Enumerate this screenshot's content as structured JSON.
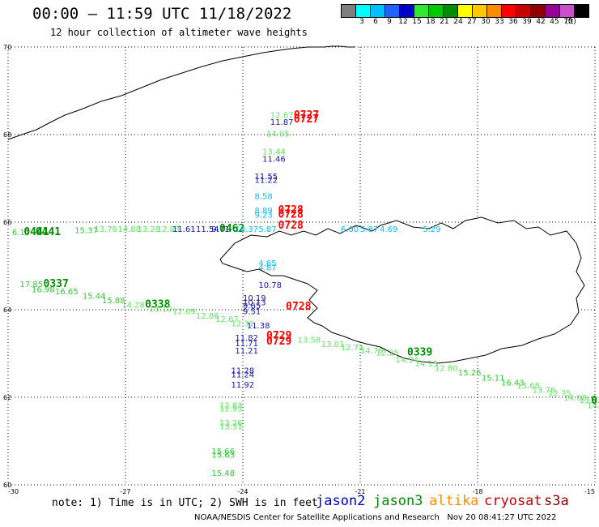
{
  "header": {
    "title": "00:00 – 11:59 UTC 11/18/2022",
    "subtitle": "12 hour collection of altimeter wave heights"
  },
  "legend": {
    "unit": "(ft)",
    "swatches": [
      {
        "label": "",
        "color": "#7f7f7f"
      },
      {
        "label": "3",
        "color": "#00ffff"
      },
      {
        "label": "6",
        "color": "#00bfff"
      },
      {
        "label": "9",
        "color": "#1e62ff"
      },
      {
        "label": "12",
        "color": "#0000c8"
      },
      {
        "label": "15",
        "color": "#32e632"
      },
      {
        "label": "18",
        "color": "#00c800"
      },
      {
        "label": "21",
        "color": "#008c00"
      },
      {
        "label": "24",
        "color": "#ffff00"
      },
      {
        "label": "27",
        "color": "#ffc800"
      },
      {
        "label": "30",
        "color": "#ff8c00"
      },
      {
        "label": "33",
        "color": "#ff0000"
      },
      {
        "label": "36",
        "color": "#c80000"
      },
      {
        "label": "39",
        "color": "#8c0000"
      },
      {
        "label": "42",
        "color": "#960096"
      },
      {
        "label": "45",
        "color": "#c850c8"
      },
      {
        "label": "70",
        "color": "#000000"
      }
    ]
  },
  "axes": {
    "lon_labels": [
      "-30",
      "-27",
      "-24",
      "-21",
      "-18",
      "-15"
    ],
    "lat_labels": [
      "70",
      "68",
      "66",
      "64",
      "62",
      "60"
    ]
  },
  "observations": [
    {
      "text": "12.67",
      "color": "#5ee65e",
      "lon": -23.3,
      "lat": 68.38
    },
    {
      "text": "11.87",
      "color": "#1414b4",
      "lon": -23.3,
      "lat": 68.22
    },
    {
      "text": "0727",
      "color": "#ff0000",
      "lon": -22.7,
      "lat": 68.37
    },
    {
      "text": "0727",
      "color": "#ff0000",
      "lon": -22.7,
      "lat": 68.28
    },
    {
      "text": "14.05",
      "color": "#5ee65e",
      "lon": -23.4,
      "lat": 67.95
    },
    {
      "text": "13.44",
      "color": "#5ee65e",
      "lon": -23.5,
      "lat": 67.55
    },
    {
      "text": "11.46",
      "color": "#1414b4",
      "lon": -23.5,
      "lat": 67.38
    },
    {
      "text": "11.55",
      "color": "#1414b4",
      "lon": -23.7,
      "lat": 66.98
    },
    {
      "text": "11.22",
      "color": "#1414b4",
      "lon": -23.7,
      "lat": 66.9
    },
    {
      "text": "8.58",
      "color": "#00bfff",
      "lon": -23.7,
      "lat": 66.53
    },
    {
      "text": "8.89",
      "color": "#00bfff",
      "lon": -23.7,
      "lat": 66.2
    },
    {
      "text": "9.23",
      "color": "#00bfff",
      "lon": -23.7,
      "lat": 66.1
    },
    {
      "text": "0728",
      "color": "#ff0000",
      "lon": -23.1,
      "lat": 66.2
    },
    {
      "text": "0728",
      "color": "#ff0000",
      "lon": -23.1,
      "lat": 66.1
    },
    {
      "text": "0728",
      "color": "#ff0000",
      "lon": -23.1,
      "lat": 65.85
    },
    {
      "text": "6.00",
      "color": "#00bfff",
      "lon": -21.5,
      "lat": 65.78
    },
    {
      "text": "5.87",
      "color": "#00bfff",
      "lon": -21.0,
      "lat": 65.78
    },
    {
      "text": "4.69",
      "color": "#00bfff",
      "lon": -20.5,
      "lat": 65.78
    },
    {
      "text": "5.29",
      "color": "#00bfff",
      "lon": -19.4,
      "lat": 65.78
    },
    {
      "text": "6.17",
      "color": "#32c832",
      "lon": -29.9,
      "lat": 65.7
    },
    {
      "text": "0441",
      "color": "#008c00",
      "lon": -29.6,
      "lat": 65.7
    },
    {
      "text": "0441",
      "color": "#008c00",
      "lon": -29.3,
      "lat": 65.7
    },
    {
      "text": "15.37",
      "color": "#32c832",
      "lon": -28.3,
      "lat": 65.75
    },
    {
      "text": "13.78",
      "color": "#5ee65e",
      "lon": -27.8,
      "lat": 65.78
    },
    {
      "text": "14.88",
      "color": "#5ee65e",
      "lon": -27.2,
      "lat": 65.78
    },
    {
      "text": "13.28",
      "color": "#5ee65e",
      "lon": -26.7,
      "lat": 65.78
    },
    {
      "text": "12.83",
      "color": "#5ee65e",
      "lon": -26.2,
      "lat": 65.78
    },
    {
      "text": "11.61",
      "color": "#1414b4",
      "lon": -25.8,
      "lat": 65.78
    },
    {
      "text": "11.54",
      "color": "#1414b4",
      "lon": -25.2,
      "lat": 65.78
    },
    {
      "text": "9.71",
      "color": "#1414b4",
      "lon": -24.8,
      "lat": 65.78
    },
    {
      "text": "0462",
      "color": "#008c00",
      "lon": -24.6,
      "lat": 65.78
    },
    {
      "text": "10.37",
      "color": "#00bfff",
      "lon": -24.2,
      "lat": 65.78
    },
    {
      "text": "5.87",
      "color": "#00bfff",
      "lon": -23.6,
      "lat": 65.78
    },
    {
      "text": "4.65",
      "color": "#00bfff",
      "lon": -23.6,
      "lat": 65.0
    },
    {
      "text": "4.87",
      "color": "#00bfff",
      "lon": -23.6,
      "lat": 64.9
    },
    {
      "text": "10.78",
      "color": "#1414b4",
      "lon": -23.6,
      "lat": 64.5
    },
    {
      "text": "10.19",
      "color": "#1414b4",
      "lon": -24.0,
      "lat": 64.2
    },
    {
      "text": "10.13",
      "color": "#1414b4",
      "lon": -24.0,
      "lat": 64.1
    },
    {
      "text": "9.65",
      "color": "#1414b4",
      "lon": -24.0,
      "lat": 64.03
    },
    {
      "text": "9.51",
      "color": "#1414b4",
      "lon": -24.0,
      "lat": 63.9
    },
    {
      "text": "0728",
      "color": "#ff0000",
      "lon": -22.9,
      "lat": 64.0
    },
    {
      "text": "17.85",
      "color": "#32c832",
      "lon": -29.7,
      "lat": 64.52
    },
    {
      "text": "0337",
      "color": "#008c00",
      "lon": -29.1,
      "lat": 64.52
    },
    {
      "text": "16.98",
      "color": "#32c832",
      "lon": -29.4,
      "lat": 64.4
    },
    {
      "text": "16.65",
      "color": "#32c832",
      "lon": -28.8,
      "lat": 64.35
    },
    {
      "text": "15.44",
      "color": "#32c832",
      "lon": -28.1,
      "lat": 64.25
    },
    {
      "text": "15.88",
      "color": "#32c832",
      "lon": -27.6,
      "lat": 64.15
    },
    {
      "text": "14.28",
      "color": "#5ee65e",
      "lon": -27.1,
      "lat": 64.05
    },
    {
      "text": "0338",
      "color": "#008c00",
      "lon": -26.5,
      "lat": 64.05
    },
    {
      "text": "13.10",
      "color": "#5ee65e",
      "lon": -26.4,
      "lat": 63.95
    },
    {
      "text": "12.69",
      "color": "#5ee65e",
      "lon": -25.8,
      "lat": 63.9
    },
    {
      "text": "12.86",
      "color": "#5ee65e",
      "lon": -25.2,
      "lat": 63.8
    },
    {
      "text": "12.67",
      "color": "#5ee65e",
      "lon": -24.7,
      "lat": 63.72
    },
    {
      "text": "12.31",
      "color": "#5ee65e",
      "lon": -24.3,
      "lat": 63.62
    },
    {
      "text": "11.38",
      "color": "#1414b4",
      "lon": -23.9,
      "lat": 63.57
    },
    {
      "text": "11.82",
      "color": "#1414b4",
      "lon": -24.2,
      "lat": 63.3
    },
    {
      "text": "11.71",
      "color": "#1414b4",
      "lon": -24.2,
      "lat": 63.17
    },
    {
      "text": "11.21",
      "color": "#1414b4",
      "lon": -24.2,
      "lat": 63.0
    },
    {
      "text": "0729",
      "color": "#ff0000",
      "lon": -23.4,
      "lat": 63.33
    },
    {
      "text": "0729",
      "color": "#ff0000",
      "lon": -23.4,
      "lat": 63.2
    },
    {
      "text": "13.58",
      "color": "#5ee65e",
      "lon": -22.6,
      "lat": 63.25
    },
    {
      "text": "13.01",
      "color": "#5ee65e",
      "lon": -22.0,
      "lat": 63.15
    },
    {
      "text": "12.71",
      "color": "#5ee65e",
      "lon": -21.5,
      "lat": 63.07
    },
    {
      "text": "14.79",
      "color": "#5ee65e",
      "lon": -21.0,
      "lat": 63.0
    },
    {
      "text": "12.25",
      "color": "#5ee65e",
      "lon": -20.6,
      "lat": 62.95
    },
    {
      "text": "0339",
      "color": "#008c00",
      "lon": -19.8,
      "lat": 62.95
    },
    {
      "text": "14.94",
      "color": "#5ee65e",
      "lon": -20.1,
      "lat": 62.8
    },
    {
      "text": "14.15",
      "color": "#5ee65e",
      "lon": -19.6,
      "lat": 62.7
    },
    {
      "text": "12.80",
      "color": "#5ee65e",
      "lon": -19.1,
      "lat": 62.6
    },
    {
      "text": "15.26",
      "color": "#32c832",
      "lon": -18.5,
      "lat": 62.5
    },
    {
      "text": "15.11",
      "color": "#32c832",
      "lon": -17.9,
      "lat": 62.38
    },
    {
      "text": "16.43",
      "color": "#32c832",
      "lon": -17.4,
      "lat": 62.27
    },
    {
      "text": "15.68",
      "color": "#5ee65e",
      "lon": -17.0,
      "lat": 62.2
    },
    {
      "text": "13.76",
      "color": "#5ee65e",
      "lon": -16.6,
      "lat": 62.1
    },
    {
      "text": "12.75",
      "color": "#5ee65e",
      "lon": -16.2,
      "lat": 62.03
    },
    {
      "text": "14.08",
      "color": "#5ee65e",
      "lon": -15.8,
      "lat": 61.93
    },
    {
      "text": "13.62",
      "color": "#5ee65e",
      "lon": -15.4,
      "lat": 61.87
    },
    {
      "text": "14.13",
      "color": "#5ee65e",
      "lon": -15.2,
      "lat": 61.75
    },
    {
      "text": "0",
      "color": "#008c00",
      "lon": -15.1,
      "lat": 61.85
    },
    {
      "text": "11.28",
      "color": "#1414b4",
      "lon": -24.3,
      "lat": 62.55
    },
    {
      "text": "11.24",
      "color": "#1414b4",
      "lon": -24.3,
      "lat": 62.45
    },
    {
      "text": "11.92",
      "color": "#1414b4",
      "lon": -24.3,
      "lat": 62.22
    },
    {
      "text": "12.83",
      "color": "#5ee65e",
      "lon": -24.6,
      "lat": 61.75
    },
    {
      "text": "12.95",
      "color": "#5ee65e",
      "lon": -24.6,
      "lat": 61.68
    },
    {
      "text": "13.26",
      "color": "#5ee65e",
      "lon": -24.6,
      "lat": 61.35
    },
    {
      "text": "13.31",
      "color": "#5ee65e",
      "lon": -24.6,
      "lat": 61.27
    },
    {
      "text": "15.66",
      "color": "#32c832",
      "lon": -24.8,
      "lat": 60.7
    },
    {
      "text": "15.63",
      "color": "#32c832",
      "lon": -24.8,
      "lat": 60.62
    },
    {
      "text": "15.48",
      "color": "#32c832",
      "lon": -24.8,
      "lat": 60.2
    }
  ],
  "footer": {
    "note": "note: 1) Time is in UTC; 2) SWH is in feet",
    "satellites": [
      {
        "name": "jason2",
        "color": "#0000c8"
      },
      {
        "name": "jason3",
        "color": "#008c00"
      },
      {
        "name": "altika",
        "color": "#ff8c00"
      },
      {
        "name": "cryosat",
        "color": "#c80000"
      },
      {
        "name": "s3a",
        "color": "#8c0000"
      }
    ],
    "credit": "NOAA/NESDIS Center for Satellite Applications and Research",
    "timestamp": "Nov 20 08:41:27 UTC 2022"
  }
}
